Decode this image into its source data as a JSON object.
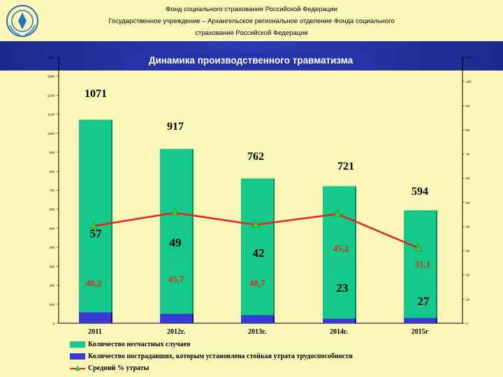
{
  "header": {
    "org_line1": "Фонд социального страхования Российской Федерации",
    "org_line2": "Государственное учреждение – Архангельское региональное отделение Фонда социального",
    "org_line3": "страхования Российской Федерации"
  },
  "colors": {
    "accidents": "#15c98b",
    "victims": "#3a3ad6",
    "avg_loss": "#e1261c",
    "marker": "#3bcc3b",
    "header_band": "#2533a6",
    "background": "#fbf7b8"
  },
  "chart_data": {
    "type": "bar",
    "title": "Динамика производственного травматизма",
    "categories": [
      "2011",
      "2012г.",
      "2013г.",
      "2014г.",
      "2015г"
    ],
    "series": [
      {
        "name": "Количество несчастных случаев",
        "type": "bar",
        "values": [
          1071,
          917,
          762,
          721,
          594
        ],
        "labels": [
          "1071",
          "917",
          "762",
          "721",
          "594"
        ]
      },
      {
        "name": "Количество пострадавших, которым установлена стойкая утрата трудоспособности",
        "type": "bar",
        "values": [
          57,
          49,
          42,
          23,
          27
        ],
        "labels": [
          "57",
          "49",
          "42",
          "23",
          "27"
        ]
      },
      {
        "name": "Средний % утраты",
        "type": "line",
        "values": [
          40.2,
          45.7,
          40.7,
          45.2,
          31.1
        ],
        "labels": [
          "40,2",
          "45,7",
          "40,7",
          "45,2",
          "31,1"
        ]
      }
    ],
    "y_left": {
      "ylim": [
        0,
        1400
      ],
      "ticks": [
        "0",
        "100",
        "200",
        "300",
        "400",
        "500",
        "600",
        "700",
        "800",
        "900",
        "1000",
        "1100",
        "1200",
        "1300",
        "1400"
      ]
    },
    "y_right": {
      "ylim": [
        0,
        110
      ],
      "ticks": [
        "0",
        "10",
        "20",
        "30",
        "40",
        "50",
        "60",
        "70",
        "80",
        "90",
        "100",
        "110"
      ]
    },
    "legend_position": "bottom-left",
    "grid": false
  }
}
